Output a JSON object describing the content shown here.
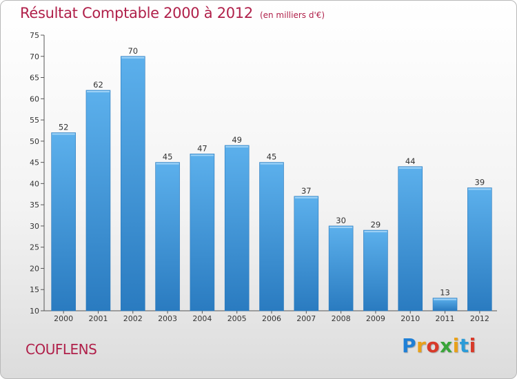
{
  "chart_data": {
    "type": "bar",
    "title": "Résultat Comptable 2000 à 2012",
    "unit_note": "(en milliers d'€)",
    "categories": [
      "2000",
      "2001",
      "2002",
      "2003",
      "2004",
      "2005",
      "2006",
      "2007",
      "2008",
      "2009",
      "2010",
      "2011",
      "2012"
    ],
    "values": [
      52,
      62,
      70,
      45,
      47,
      49,
      45,
      37,
      30,
      29,
      44,
      13,
      39
    ],
    "ylim": [
      10,
      75
    ],
    "yticks": [
      10,
      15,
      20,
      25,
      30,
      35,
      40,
      45,
      50,
      55,
      60,
      65,
      70,
      75
    ],
    "xlabel": "",
    "ylabel": "",
    "grid": false,
    "bar_color": "#3d95d8"
  },
  "footer": {
    "commune": "COUFLENS",
    "logo_text": "Proxiti"
  }
}
